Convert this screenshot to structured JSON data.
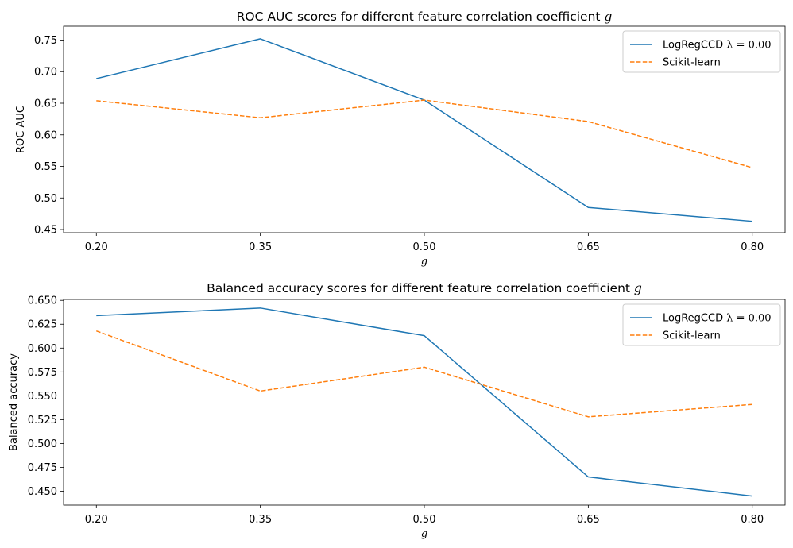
{
  "chart_data": [
    {
      "type": "line",
      "title": "ROC AUC scores for different feature correlation coefficient g",
      "title_main": "ROC AUC scores for different feature correlation coefficient",
      "title_var": "g",
      "xlabel": "g",
      "ylabel": "ROC AUC",
      "x": [
        0.2,
        0.35,
        0.5,
        0.65,
        0.8
      ],
      "x_tick_labels": [
        "0.20",
        "0.35",
        "0.50",
        "0.65",
        "0.80"
      ],
      "ylim": [
        0.445,
        0.772
      ],
      "y_ticks": [
        0.45,
        0.5,
        0.55,
        0.6,
        0.65,
        0.7,
        0.75
      ],
      "y_tick_labels": [
        "0.45",
        "0.50",
        "0.55",
        "0.60",
        "0.65",
        "0.70",
        "0.75"
      ],
      "grid": false,
      "legend_position": "top-right",
      "series": [
        {
          "name": "LogRegCCD λ = 0.00",
          "name_main": "LogRegCCD",
          "name_math": "λ = 0.00",
          "values": [
            0.689,
            0.752,
            0.655,
            0.485,
            0.463
          ],
          "color": "#1f77b4",
          "style": "solid"
        },
        {
          "name": "Scikit-learn",
          "name_main": "Scikit-learn",
          "name_math": "",
          "values": [
            0.654,
            0.627,
            0.655,
            0.621,
            0.548
          ],
          "color": "#ff7f0e",
          "style": "dashed"
        }
      ]
    },
    {
      "type": "line",
      "title": "Balanced accuracy scores for different feature correlation coefficient g",
      "title_main": "Balanced accuracy scores for different feature correlation coefficient",
      "title_var": "g",
      "xlabel": "g",
      "ylabel": "Balanced accuracy",
      "x": [
        0.2,
        0.35,
        0.5,
        0.65,
        0.8
      ],
      "x_tick_labels": [
        "0.20",
        "0.35",
        "0.50",
        "0.65",
        "0.80"
      ],
      "ylim": [
        0.4355,
        0.651
      ],
      "y_ticks": [
        0.45,
        0.475,
        0.5,
        0.525,
        0.55,
        0.575,
        0.6,
        0.625,
        0.65
      ],
      "y_tick_labels": [
        "0.450",
        "0.475",
        "0.500",
        "0.525",
        "0.550",
        "0.575",
        "0.600",
        "0.625",
        "0.650"
      ],
      "grid": false,
      "legend_position": "top-right",
      "series": [
        {
          "name": "LogRegCCD λ = 0.00",
          "name_main": "LogRegCCD",
          "name_math": "λ = 0.00",
          "values": [
            0.634,
            0.642,
            0.613,
            0.465,
            0.445
          ],
          "color": "#1f77b4",
          "style": "solid"
        },
        {
          "name": "Scikit-learn",
          "name_main": "Scikit-learn",
          "name_math": "",
          "values": [
            0.618,
            0.555,
            0.58,
            0.528,
            0.541
          ],
          "color": "#ff7f0e",
          "style": "dashed"
        }
      ]
    }
  ]
}
